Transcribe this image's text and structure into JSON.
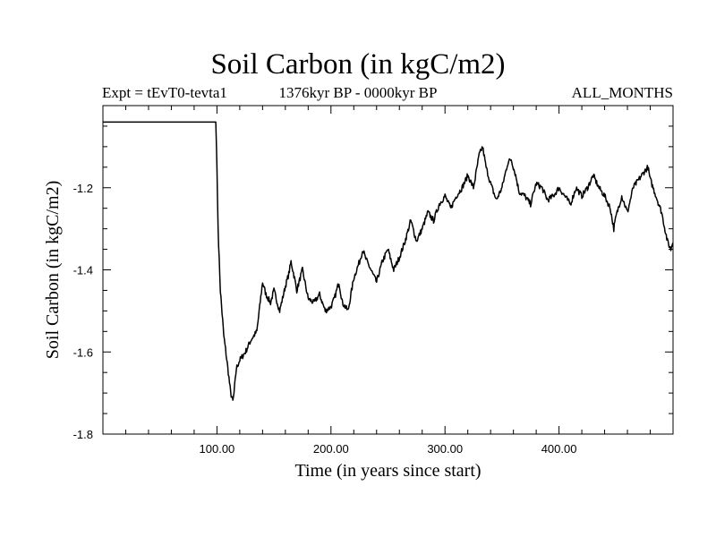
{
  "header": {
    "title": "Soil Carbon (in kgC/m2)",
    "experiment": "Expt = tEvT0-tevta1",
    "period": "1376kyr BP - 0000kyr BP",
    "season": "ALL_MONTHS"
  },
  "chart_data": {
    "type": "line",
    "title": "Soil Carbon (in kgC/m2)",
    "xlabel": "Time (in years since start)",
    "ylabel": "Soil Carbon (in kgC/m2)",
    "xlim": [
      0,
      500
    ],
    "ylim": [
      -1.8,
      -1.0
    ],
    "x_ticks": [
      100,
      200,
      300,
      400
    ],
    "x_tick_labels": [
      "100.00",
      "200.00",
      "300.00",
      "400.00"
    ],
    "y_ticks": [
      -1.8,
      -1.6,
      -1.4,
      -1.2
    ],
    "y_tick_labels": [
      "-1.8",
      "-1.6",
      "-1.4",
      "-1.2"
    ],
    "grid": false,
    "series": [
      {
        "name": "Soil Carbon",
        "color": "#000000",
        "x": [
          0,
          99,
          100,
          101,
          103,
          106,
          110,
          112,
          114,
          115,
          117,
          120,
          125,
          130,
          135,
          140,
          143,
          147,
          150,
          155,
          160,
          163,
          165,
          168,
          170,
          175,
          180,
          185,
          190,
          195,
          200,
          203,
          207,
          210,
          215,
          220,
          225,
          228,
          230,
          235,
          240,
          245,
          250,
          255,
          260,
          265,
          270,
          275,
          280,
          285,
          290,
          295,
          300,
          305,
          310,
          315,
          320,
          325,
          330,
          333,
          336,
          340,
          345,
          350,
          355,
          358,
          362,
          365,
          370,
          375,
          380,
          385,
          390,
          395,
          400,
          405,
          410,
          415,
          420,
          425,
          430,
          435,
          440,
          445,
          448,
          450,
          455,
          460,
          465,
          470,
          475,
          478,
          480,
          485,
          490,
          495,
          498,
          500
        ],
        "values": [
          -1.04,
          -1.04,
          -1.15,
          -1.3,
          -1.45,
          -1.56,
          -1.65,
          -1.7,
          -1.72,
          -1.7,
          -1.64,
          -1.62,
          -1.6,
          -1.57,
          -1.55,
          -1.43,
          -1.46,
          -1.48,
          -1.45,
          -1.5,
          -1.44,
          -1.41,
          -1.38,
          -1.42,
          -1.45,
          -1.4,
          -1.47,
          -1.48,
          -1.46,
          -1.5,
          -1.49,
          -1.47,
          -1.43,
          -1.48,
          -1.5,
          -1.42,
          -1.38,
          -1.35,
          -1.37,
          -1.4,
          -1.43,
          -1.38,
          -1.35,
          -1.4,
          -1.37,
          -1.33,
          -1.28,
          -1.33,
          -1.3,
          -1.26,
          -1.28,
          -1.24,
          -1.22,
          -1.25,
          -1.22,
          -1.2,
          -1.17,
          -1.2,
          -1.12,
          -1.1,
          -1.15,
          -1.19,
          -1.23,
          -1.2,
          -1.14,
          -1.13,
          -1.17,
          -1.21,
          -1.22,
          -1.24,
          -1.19,
          -1.2,
          -1.23,
          -1.22,
          -1.2,
          -1.22,
          -1.24,
          -1.2,
          -1.22,
          -1.2,
          -1.17,
          -1.2,
          -1.22,
          -1.25,
          -1.3,
          -1.27,
          -1.22,
          -1.26,
          -1.2,
          -1.18,
          -1.16,
          -1.15,
          -1.18,
          -1.22,
          -1.26,
          -1.33,
          -1.35,
          -1.33
        ]
      }
    ]
  }
}
